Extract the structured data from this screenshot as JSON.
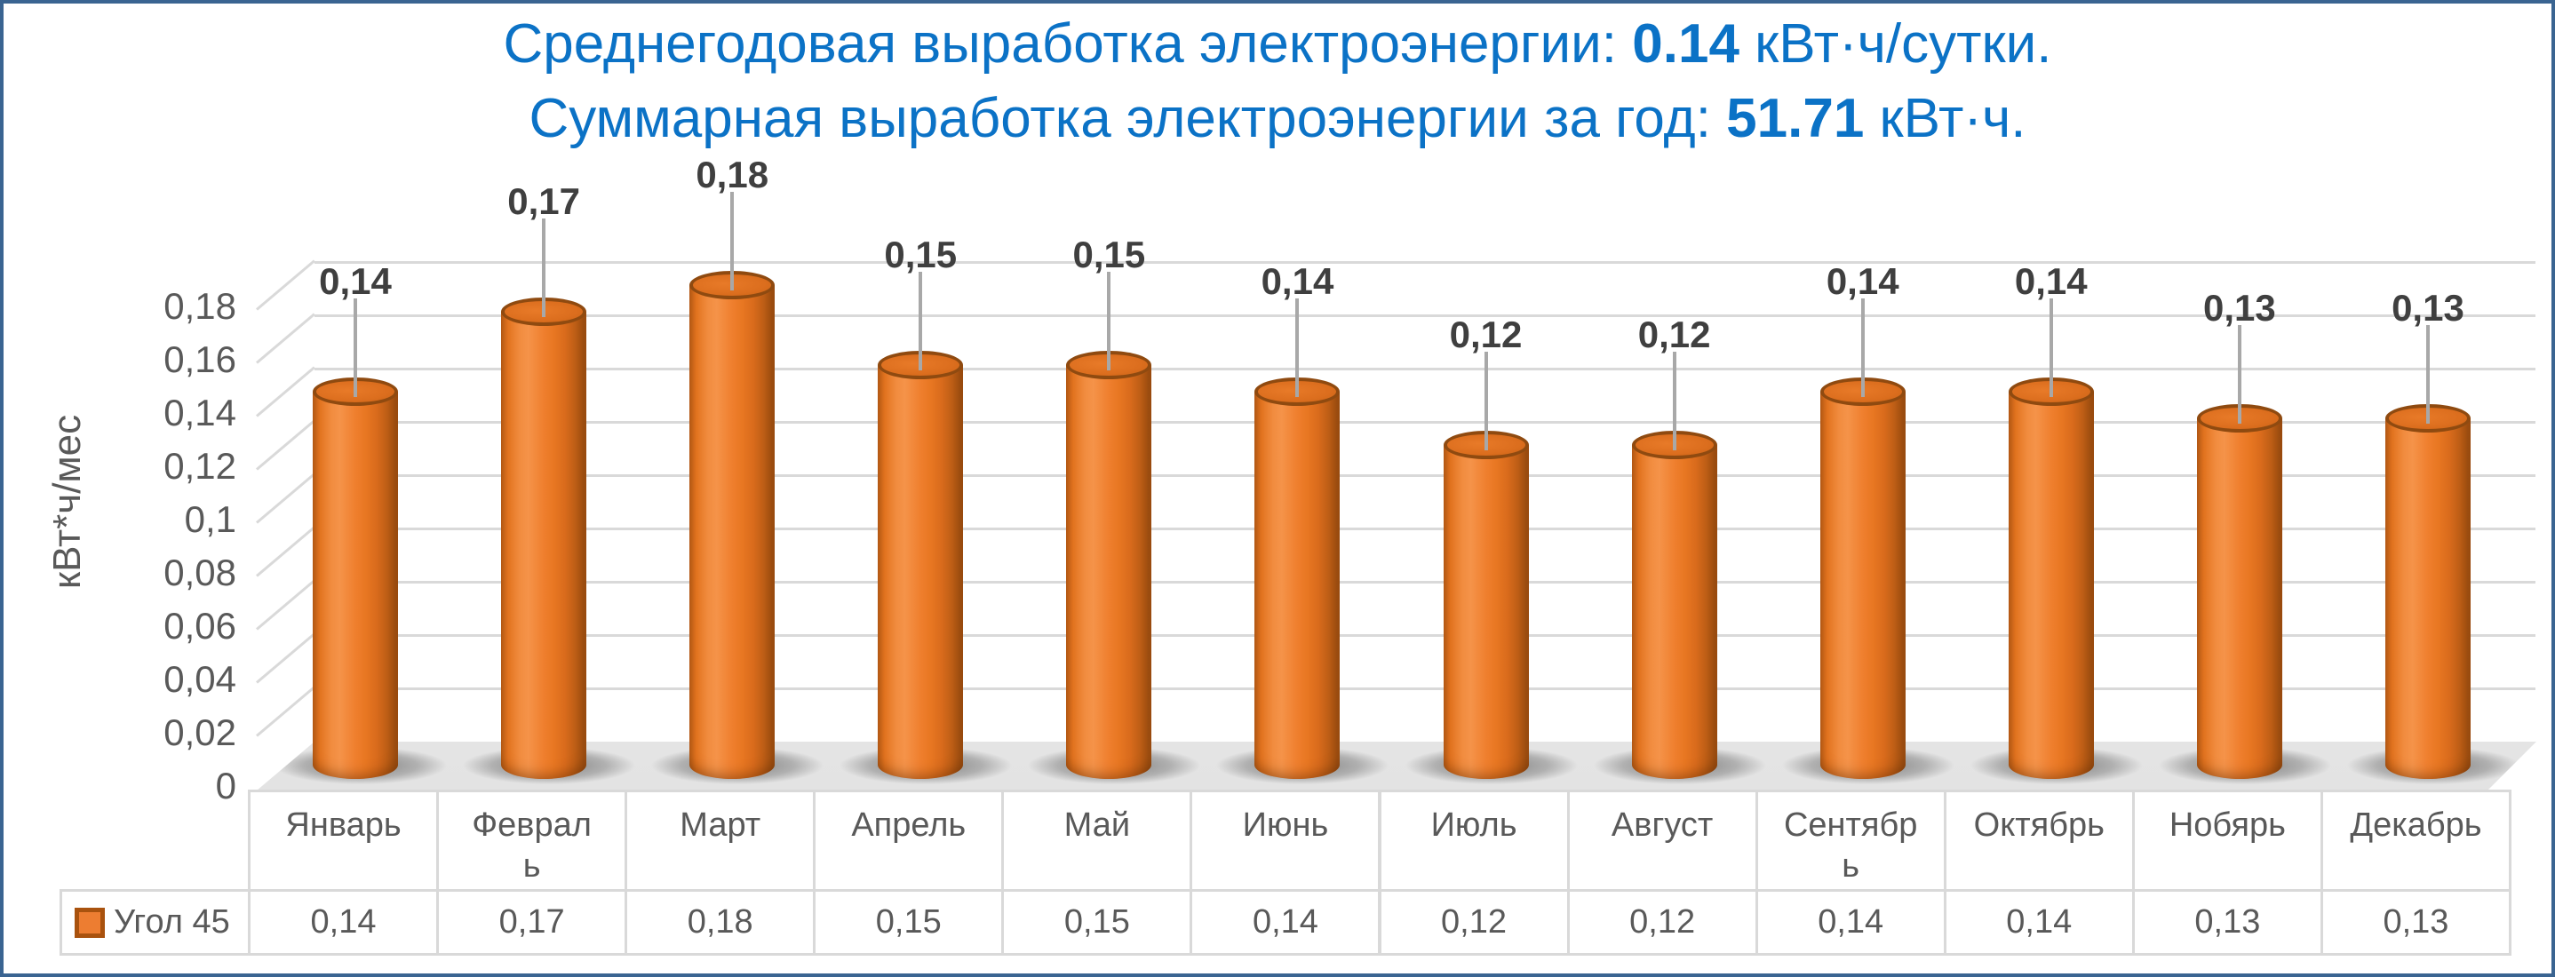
{
  "frame": {
    "border_color": "#3A6491",
    "background": "#FFFFFF"
  },
  "title": {
    "color": "#0B72C6",
    "line1": {
      "prefix": "Среднегодовая выработка электроэнергии: ",
      "value": "0.14",
      "suffix": " кВт·ч/сутки."
    },
    "line2": {
      "prefix": "Суммарная выработка электроэнергии за год: ",
      "value": "51.71",
      "suffix": " кВт·ч."
    }
  },
  "chart_data": {
    "type": "bar",
    "subtype": "3d-cylinder",
    "title": "Среднегодовая выработка электроэнергии: 0.14 кВт·ч/сутки. Суммарная выработка электроэнергии за год: 51.71 кВт·ч.",
    "categories": [
      "Январь",
      "Февраль",
      "Март",
      "Апрель",
      "Май",
      "Июнь",
      "Июль",
      "Август",
      "Сентябрь",
      "Октябрь",
      "Нобярь",
      "Декабрь"
    ],
    "series": [
      {
        "name": "Угол 45",
        "color": "#ED7D31",
        "values": [
          0.14,
          0.17,
          0.18,
          0.15,
          0.15,
          0.14,
          0.12,
          0.12,
          0.14,
          0.14,
          0.13,
          0.13
        ]
      }
    ],
    "value_labels": [
      "0,14",
      "0,17",
      "0,18",
      "0,15",
      "0,15",
      "0,14",
      "0,12",
      "0,12",
      "0,14",
      "0,14",
      "0,13",
      "0,13"
    ],
    "ylabel": "кВт*ч/мес",
    "yticks": [
      {
        "label": "0,18",
        "value": 0.18
      },
      {
        "label": "0,16",
        "value": 0.16
      },
      {
        "label": "0,14",
        "value": 0.14
      },
      {
        "label": "0,12",
        "value": 0.12
      },
      {
        "label": "0,1",
        "value": 0.1
      },
      {
        "label": "0,08",
        "value": 0.08
      },
      {
        "label": "0,06",
        "value": 0.06
      },
      {
        "label": "0,04",
        "value": 0.04
      },
      {
        "label": "0,02",
        "value": 0.02
      },
      {
        "label": "0",
        "value": 0
      }
    ],
    "ylim": [
      0,
      0.19
    ],
    "grid": true,
    "legend_position": "bottom-table-left",
    "data_table": true
  },
  "colors": {
    "grid": "#D9D9D9",
    "tick_text": "#595959",
    "data_label": "#3F3F3F",
    "leader": "#A8A8A8",
    "table_border": "#D9D9D9",
    "bar_main": "#ED7D31",
    "bar_dark": "#9E4E10",
    "bar_rim": "#8F4A10",
    "legend_swatch_border": "#A9520E"
  }
}
